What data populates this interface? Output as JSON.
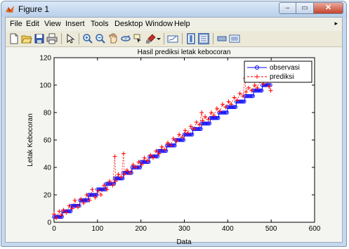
{
  "window": {
    "title": "Figure 1",
    "icon": "matlab-icon"
  },
  "window_controls": {
    "minimize": "–",
    "maximize": "▭",
    "close": "✕"
  },
  "menubar": {
    "items": [
      "File",
      "Edit",
      "View",
      "Insert",
      "Tools",
      "Desktop",
      "Window",
      "Help"
    ],
    "overflow_arrow": "▸"
  },
  "toolbar": {
    "buttons": [
      "new-figure-icon",
      "open-file-icon",
      "save-icon",
      "print-icon",
      "edit-plot-arrow-icon",
      "zoom-in-icon",
      "zoom-out-icon",
      "pan-icon",
      "rotate-3d-icon",
      "data-cursor-icon",
      "brush-icon",
      "link-plot-icon",
      "insert-colorbar-icon",
      "insert-legend-icon",
      "hide-plot-tools-icon",
      "show-plot-tools-icon"
    ]
  },
  "colors": {
    "observasi": "#0000ff",
    "prediksi": "#ff0000",
    "axes_background": "#ffffff"
  },
  "chart_data": {
    "type": "line",
    "title": "Hasil prediksi letak kebocoran",
    "xlabel": "Data",
    "ylabel": "Letak Kebocoran",
    "xlim": [
      0,
      600
    ],
    "ylim": [
      0,
      120
    ],
    "xticks": [
      0,
      100,
      200,
      300,
      400,
      500,
      600
    ],
    "yticks": [
      0,
      20,
      40,
      60,
      80,
      100,
      120
    ],
    "grid": false,
    "legend_position": "top-right",
    "series": [
      {
        "name": "observasi",
        "style": "solid line with circle markers",
        "marker": "o",
        "x": [
          0,
          19,
          20,
          39,
          40,
          59,
          60,
          79,
          80,
          99,
          100,
          119,
          120,
          139,
          140,
          159,
          160,
          179,
          180,
          199,
          200,
          219,
          220,
          239,
          240,
          259,
          260,
          279,
          280,
          299,
          300,
          319,
          320,
          339,
          340,
          359,
          360,
          379,
          380,
          399,
          400,
          419,
          420,
          439,
          440,
          459,
          460,
          479,
          480,
          499
        ],
        "y": [
          4,
          4,
          8,
          8,
          12,
          12,
          16,
          16,
          20,
          20,
          24,
          24,
          28,
          28,
          32,
          32,
          36,
          36,
          40,
          40,
          44,
          44,
          48,
          48,
          52,
          52,
          56,
          56,
          60,
          60,
          64,
          64,
          68,
          68,
          72,
          72,
          76,
          76,
          80,
          80,
          84,
          84,
          88,
          88,
          92,
          92,
          96,
          96,
          100,
          100
        ]
      },
      {
        "name": "prediksi",
        "style": "dashed line with plus markers",
        "marker": "+",
        "x": [
          0,
          5,
          12,
          17,
          22,
          28,
          35,
          42,
          48,
          55,
          62,
          68,
          75,
          82,
          88,
          95,
          102,
          108,
          115,
          122,
          128,
          135,
          140,
          142,
          148,
          155,
          160,
          162,
          168,
          175,
          182,
          188,
          195,
          202,
          208,
          215,
          222,
          228,
          235,
          242,
          248,
          255,
          262,
          268,
          275,
          282,
          288,
          295,
          302,
          308,
          315,
          322,
          328,
          335,
          340,
          342,
          348,
          355,
          362,
          368,
          375,
          382,
          388,
          395,
          402,
          408,
          415,
          422,
          428,
          435,
          440,
          442,
          448,
          455,
          462,
          468,
          475,
          482,
          488,
          495,
          499
        ],
        "y": [
          6,
          3,
          8,
          5,
          9,
          7,
          12,
          10,
          16,
          11,
          17,
          14,
          20,
          16,
          24,
          18,
          23,
          20,
          27,
          24,
          30,
          27,
          48,
          30,
          35,
          33,
          50,
          35,
          38,
          36,
          42,
          40,
          44,
          42,
          47,
          45,
          49,
          47,
          52,
          50,
          55,
          53,
          58,
          56,
          61,
          59,
          64,
          62,
          67,
          65,
          70,
          68,
          73,
          71,
          80,
          74,
          77,
          75,
          80,
          78,
          83,
          81,
          86,
          84,
          88,
          86,
          91,
          89,
          94,
          92,
          105,
          95,
          98,
          96,
          100,
          98,
          103,
          101,
          105,
          99,
          96
        ]
      }
    ]
  }
}
